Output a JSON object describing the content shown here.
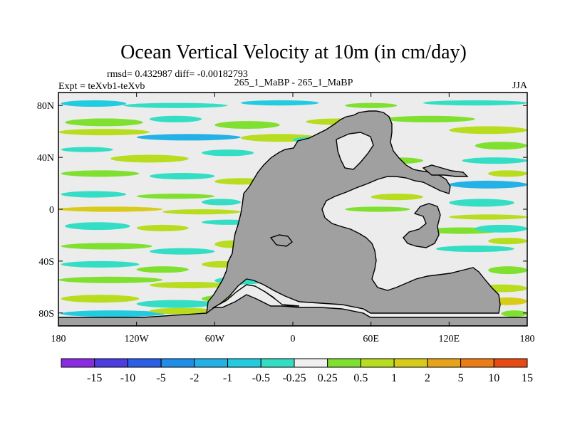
{
  "chart_data": {
    "type": "heatmap",
    "title": "Ocean Vertical Velocity at 10m (in cm/day)",
    "stats_label": "rmsd= 0.432987 diff= -0.00182793",
    "left_label": "Expt = teXvb1-teXvb",
    "center_label": "265_1_MaBP - 265_1_MaBP",
    "right_label": "JJA",
    "x_axis": {
      "range": [
        -180,
        180
      ],
      "tick_labels": [
        "180",
        "120W",
        "60W",
        "0",
        "60E",
        "120E",
        "180"
      ]
    },
    "y_axis": {
      "range": [
        -90,
        90
      ],
      "tick_labels": [
        "80N",
        "40N",
        "0",
        "40S",
        "80S"
      ]
    },
    "colorbar": {
      "labels": [
        "-15",
        "-10",
        "-5",
        "-2",
        "-1",
        "-0.5",
        "-0.25",
        "0.25",
        "0.5",
        "1",
        "2",
        "5",
        "10",
        "15"
      ],
      "colors": [
        "#8a2be2",
        "#4b3de0",
        "#2a5fe6",
        "#1f8ee8",
        "#24b2e6",
        "#21cbe0",
        "#34dec4",
        "#f0f0f0",
        "#80e030",
        "#b8dc1e",
        "#d8cc1a",
        "#e8a418",
        "#ec7c16",
        "#e84a14"
      ]
    },
    "land_color": "#a0a0a0"
  }
}
